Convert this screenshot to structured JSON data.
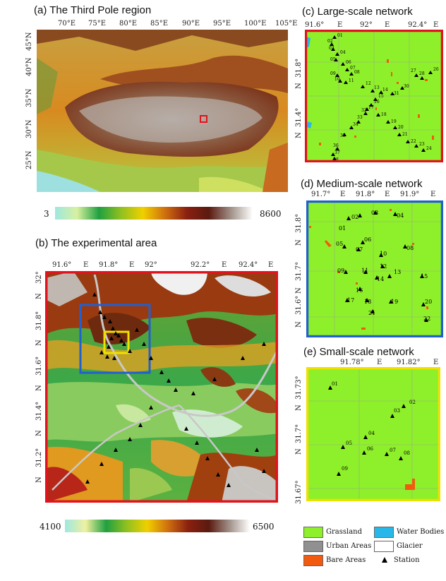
{
  "panel_a": {
    "title": "(a) The Third Pole region",
    "lon_labels": [
      "70°E",
      "75°E",
      "80°E",
      "85°E",
      "90°E",
      "95°E",
      "100°E",
      "105°E"
    ],
    "lat_labels": [
      "45°N",
      "40°N",
      "35°N",
      "30°N",
      "25°N"
    ],
    "colorbar_min": "3",
    "colorbar_max": "8600",
    "marker_color": "#e0141c"
  },
  "panel_b": {
    "title": "(b) The experimental area",
    "lon_labels": [
      "91.6°",
      "E",
      "91.8°",
      "E",
      "92°",
      "92.2°",
      "E",
      "92.4°",
      "E"
    ],
    "lat_labels": [
      "32°",
      "N",
      "31.8°",
      "N",
      "31.6°",
      "N",
      "31.4°",
      "N",
      "31.2°",
      "N"
    ],
    "colorbar_min": "4100",
    "colorbar_max": "6500",
    "frame_color": "#e0141c",
    "medium_box_color": "#2060d0",
    "small_box_color": "#f0e000"
  },
  "panel_c": {
    "title": "(c) Large-scale network",
    "lon_labels": [
      "91.6°",
      "E",
      "92°",
      "E",
      "92.4°",
      "E"
    ],
    "lat_labels": [
      "31.8°",
      "N",
      "31.4°",
      "N"
    ],
    "frame_color": "#e0141c",
    "stations": [
      "01",
      "02",
      "03",
      "04",
      "05",
      "06",
      "07",
      "08",
      "09",
      "10",
      "11",
      "12",
      "13",
      "14",
      "15",
      "16",
      "17",
      "18",
      "19",
      "20",
      "21",
      "22",
      "23",
      "24",
      "25",
      "26",
      "27",
      "28",
      "29",
      "30",
      "31",
      "32",
      "33",
      "34",
      "35",
      "36",
      "37",
      "38"
    ]
  },
  "panel_d": {
    "title": "(d) Medium-scale network",
    "lon_labels": [
      "91.7°",
      "E",
      "91.8°",
      "E",
      "91.9°",
      "E"
    ],
    "lat_labels": [
      "31.8°",
      "N",
      "31.7°",
      "N",
      "31.6°",
      "N"
    ],
    "frame_color": "#2060d0",
    "stations": [
      "01",
      "02",
      "03",
      "04",
      "05",
      "06",
      "07",
      "08",
      "09",
      "10",
      "11",
      "12",
      "13",
      "14",
      "15",
      "16",
      "17",
      "18",
      "19",
      "20",
      "21",
      "22"
    ]
  },
  "panel_e": {
    "title": "(e) Small-scale network",
    "lon_labels": [
      "91.78°",
      "E",
      "91.82°",
      "E"
    ],
    "lat_labels": [
      "31.73°",
      "N",
      "31.7°",
      "N",
      "31.67°"
    ],
    "frame_color": "#f0e000",
    "stations": [
      "01",
      "02",
      "03",
      "04",
      "05",
      "06",
      "07",
      "08",
      "09"
    ]
  },
  "legend": {
    "items": [
      {
        "label": "Grassland",
        "color": "#8ef02a"
      },
      {
        "label": "Water Bodies",
        "color": "#27b7e8"
      },
      {
        "label": "Urban Areas",
        "color": "#909090"
      },
      {
        "label": "Glacier",
        "color": "#ffffff"
      },
      {
        "label": "Bare Areas",
        "color": "#f25a10"
      },
      {
        "label": "Station",
        "symbol": "triangle"
      }
    ]
  }
}
